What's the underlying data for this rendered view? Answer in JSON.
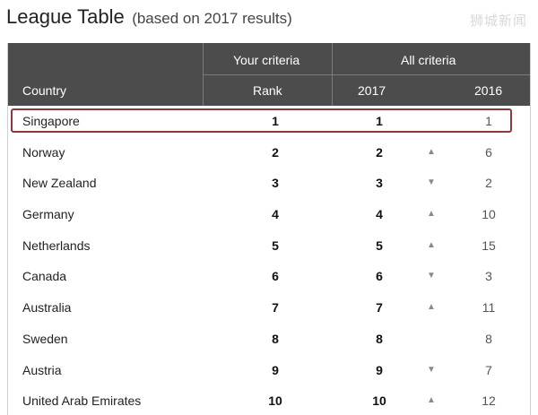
{
  "title": {
    "main": "League Table",
    "sub": "(based on 2017 results)"
  },
  "watermark": "狮城新闻",
  "header": {
    "group_your": "Your criteria",
    "group_all": "All criteria",
    "col_country": "Country",
    "col_rank": "Rank",
    "col_2017": "2017",
    "col_2016": "2016"
  },
  "rows": [
    {
      "country": "Singapore",
      "rank": "1",
      "y2017": "1",
      "trend": "none",
      "y2016": "1",
      "highlight": true
    },
    {
      "country": "Norway",
      "rank": "2",
      "y2017": "2",
      "trend": "up",
      "y2016": "6"
    },
    {
      "country": "New Zealand",
      "rank": "3",
      "y2017": "3",
      "trend": "down",
      "y2016": "2"
    },
    {
      "country": "Germany",
      "rank": "4",
      "y2017": "4",
      "trend": "up",
      "y2016": "10"
    },
    {
      "country": "Netherlands",
      "rank": "5",
      "y2017": "5",
      "trend": "up",
      "y2016": "15"
    },
    {
      "country": "Canada",
      "rank": "6",
      "y2017": "6",
      "trend": "down",
      "y2016": "3"
    },
    {
      "country": "Australia",
      "rank": "7",
      "y2017": "7",
      "trend": "up",
      "y2016": "11"
    },
    {
      "country": "Sweden",
      "rank": "8",
      "y2017": "8",
      "trend": "none",
      "y2016": "8"
    },
    {
      "country": "Austria",
      "rank": "9",
      "y2017": "9",
      "trend": "down",
      "y2016": "7"
    },
    {
      "country": "United Arab Emirates",
      "rank": "10",
      "y2017": "10",
      "trend": "up",
      "y2016": "12"
    }
  ],
  "icons": {
    "up": "triangle-up-icon",
    "down": "triangle-down-icon"
  },
  "colors": {
    "header_bg": "#4c4c4c",
    "highlight_border": "#8a3a3a",
    "arrow": "#8a8a8a"
  }
}
